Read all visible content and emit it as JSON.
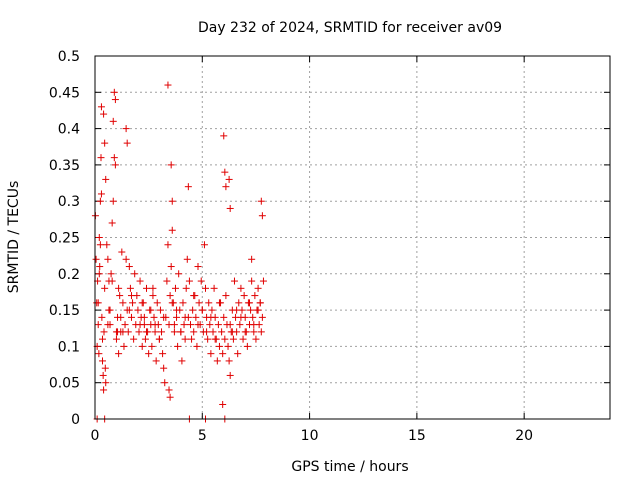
{
  "chart_data": {
    "type": "scatter",
    "title": "Day 232 of 2024, SRMTID for receiver av09",
    "xlabel": "GPS time / hours",
    "ylabel": "SRMTID / TECUs",
    "xlim": [
      0,
      24
    ],
    "ylim": [
      0,
      0.5
    ],
    "xticks": [
      0,
      5,
      10,
      15,
      20
    ],
    "xtick_labels": [
      "0",
      "5",
      "10",
      "15",
      "20"
    ],
    "yticks": [
      0,
      0.05,
      0.1,
      0.15,
      0.2,
      0.25,
      0.3,
      0.35,
      0.4,
      0.45,
      0.5
    ],
    "ytick_labels": [
      "0",
      "0.05",
      "0.1",
      "0.15",
      "0.2",
      "0.25",
      "0.3",
      "0.35",
      "0.4",
      "0.45",
      "0.5"
    ],
    "grid": true,
    "legend": "none",
    "marker": "+",
    "color": "#e00000",
    "series": [
      {
        "name": "SRMTID",
        "x": [
          0.02,
          0.05,
          0.08,
          0.1,
          0.12,
          0.15,
          0.18,
          0.2,
          0.22,
          0.25,
          0.28,
          0.3,
          0.32,
          0.35,
          0.38,
          0.4,
          0.42,
          0.45,
          0.48,
          0.5,
          0.55,
          0.6,
          0.65,
          0.7,
          0.75,
          0.8,
          0.85,
          0.9,
          0.95,
          1.0,
          1.05,
          1.1,
          1.15,
          1.2,
          1.25,
          1.3,
          1.35,
          1.4,
          1.45,
          1.5,
          1.55,
          1.6,
          1.65,
          1.7,
          1.75,
          1.8,
          1.85,
          1.9,
          1.95,
          2.0,
          2.05,
          2.1,
          2.15,
          2.2,
          2.25,
          2.3,
          2.35,
          2.4,
          2.45,
          2.5,
          2.55,
          2.6,
          2.65,
          2.7,
          2.75,
          2.8,
          2.85,
          2.9,
          2.95,
          3.0,
          3.05,
          3.1,
          3.15,
          3.2,
          3.25,
          3.3,
          3.35,
          3.4,
          3.45,
          3.5,
          3.55,
          3.6,
          3.65,
          3.7,
          3.75,
          3.8,
          3.85,
          3.9,
          3.95,
          4.0,
          4.05,
          4.1,
          4.15,
          4.2,
          4.25,
          4.3,
          4.35,
          4.4,
          4.45,
          4.5,
          4.55,
          4.6,
          4.65,
          4.7,
          4.75,
          4.8,
          4.85,
          4.9,
          4.95,
          5.0,
          5.05,
          5.1,
          5.15,
          5.2,
          5.25,
          5.3,
          5.35,
          5.4,
          5.45,
          5.5,
          5.55,
          5.6,
          5.65,
          5.7,
          5.75,
          5.8,
          5.85,
          5.9,
          5.95,
          6.0,
          6.05,
          6.1,
          6.15,
          6.2,
          6.25,
          6.3,
          6.35,
          6.4,
          6.45,
          6.5,
          6.55,
          6.6,
          6.65,
          6.7,
          6.75,
          6.8,
          6.85,
          6.9,
          6.95,
          7.0,
          7.05,
          7.1,
          7.15,
          7.2,
          7.25,
          7.3,
          7.35,
          7.4,
          7.45,
          7.5,
          7.55,
          7.6,
          7.65,
          7.7,
          7.75,
          7.8,
          7.85,
          0.35,
          0.4,
          0.45,
          0.5,
          0.8,
          0.85,
          0.9,
          1.45,
          1.5,
          3.4,
          3.45,
          3.5,
          5.95,
          6.0,
          6.05,
          6.1,
          7.75,
          7.8,
          0.25,
          0.3,
          4.35,
          4.4,
          0.45,
          5.15,
          6.05,
          0.1,
          0.15,
          0.2,
          0.6,
          0.65,
          0.7,
          1.0,
          1.1,
          1.2,
          1.3,
          1.6,
          1.7,
          2.1,
          2.2,
          2.3,
          2.4,
          2.6,
          2.7,
          2.8,
          3.0,
          3.2,
          3.6,
          3.7,
          3.8,
          4.0,
          4.2,
          4.6,
          4.8,
          5.0,
          5.2,
          5.4,
          5.6,
          5.8,
          6.3,
          6.4,
          6.6,
          6.8,
          7.0,
          7.2,
          7.4,
          7.6,
          3.55,
          3.6,
          6.25,
          6.3,
          7.3,
          7.7,
          0.95,
          1.05
        ],
        "y": [
          0.28,
          0.22,
          0.16,
          0.1,
          0.19,
          0.13,
          0.09,
          0.25,
          0.21,
          0.3,
          0.36,
          0.43,
          0.14,
          0.08,
          0.06,
          0.04,
          0.12,
          0.18,
          0.07,
          0.05,
          0.24,
          0.22,
          0.15,
          0.13,
          0.2,
          0.19,
          0.3,
          0.36,
          0.44,
          0.11,
          0.14,
          0.09,
          0.17,
          0.12,
          0.23,
          0.16,
          0.1,
          0.13,
          0.22,
          0.15,
          0.12,
          0.21,
          0.18,
          0.14,
          0.16,
          0.11,
          0.2,
          0.13,
          0.17,
          0.15,
          0.12,
          0.19,
          0.14,
          0.1,
          0.16,
          0.13,
          0.11,
          0.18,
          0.12,
          0.09,
          0.15,
          0.13,
          0.1,
          0.17,
          0.14,
          0.12,
          0.08,
          0.16,
          0.13,
          0.11,
          0.15,
          0.12,
          0.09,
          0.07,
          0.05,
          0.14,
          0.19,
          0.24,
          0.13,
          0.17,
          0.21,
          0.26,
          0.16,
          0.12,
          0.18,
          0.14,
          0.1,
          0.2,
          0.15,
          0.12,
          0.08,
          0.16,
          0.13,
          0.11,
          0.18,
          0.22,
          0.14,
          0.19,
          0.13,
          0.11,
          0.15,
          0.12,
          0.17,
          0.14,
          0.1,
          0.21,
          0.16,
          0.13,
          0.19,
          0.15,
          0.12,
          0.24,
          0.18,
          0.14,
          0.11,
          0.16,
          0.13,
          0.09,
          0.15,
          0.12,
          0.18,
          0.14,
          0.11,
          0.08,
          0.13,
          0.1,
          0.16,
          0.12,
          0.09,
          0.14,
          0.11,
          0.17,
          0.13,
          0.1,
          0.08,
          0.06,
          0.12,
          0.15,
          0.11,
          0.19,
          0.14,
          0.12,
          0.09,
          0.16,
          0.13,
          0.18,
          0.15,
          0.11,
          0.17,
          0.14,
          0.12,
          0.1,
          0.16,
          0.13,
          0.15,
          0.19,
          0.14,
          0.12,
          0.17,
          0.11,
          0.15,
          0.18,
          0.13,
          0.16,
          0.12,
          0.14,
          0.19,
          0.11,
          0.42,
          0.38,
          0.33,
          0.27,
          0.41,
          0.45,
          0.4,
          0.38,
          0.46,
          0.04,
          0.03,
          0.02,
          0.39,
          0.34,
          0.32,
          0.3,
          0.28,
          0.24,
          0.31,
          0.32,
          0.0,
          0.0,
          0.0,
          0.0,
          0.0,
          0.16,
          0.2,
          0.13,
          0.19,
          0.15,
          0.12,
          0.18,
          0.14,
          0.12,
          0.15,
          0.17,
          0.13,
          0.16,
          0.14,
          0.12,
          0.15,
          0.18,
          0.13,
          0.11,
          0.14,
          0.16,
          0.13,
          0.15,
          0.12,
          0.14,
          0.17,
          0.13,
          0.15,
          0.12,
          0.14,
          0.11,
          0.16,
          0.13,
          0.12,
          0.15,
          0.14,
          0.12,
          0.16,
          0.13,
          0.15,
          0.35,
          0.3,
          0.33,
          0.29,
          0.22,
          0.16,
          0.35,
          0.12
        ]
      }
    ]
  }
}
